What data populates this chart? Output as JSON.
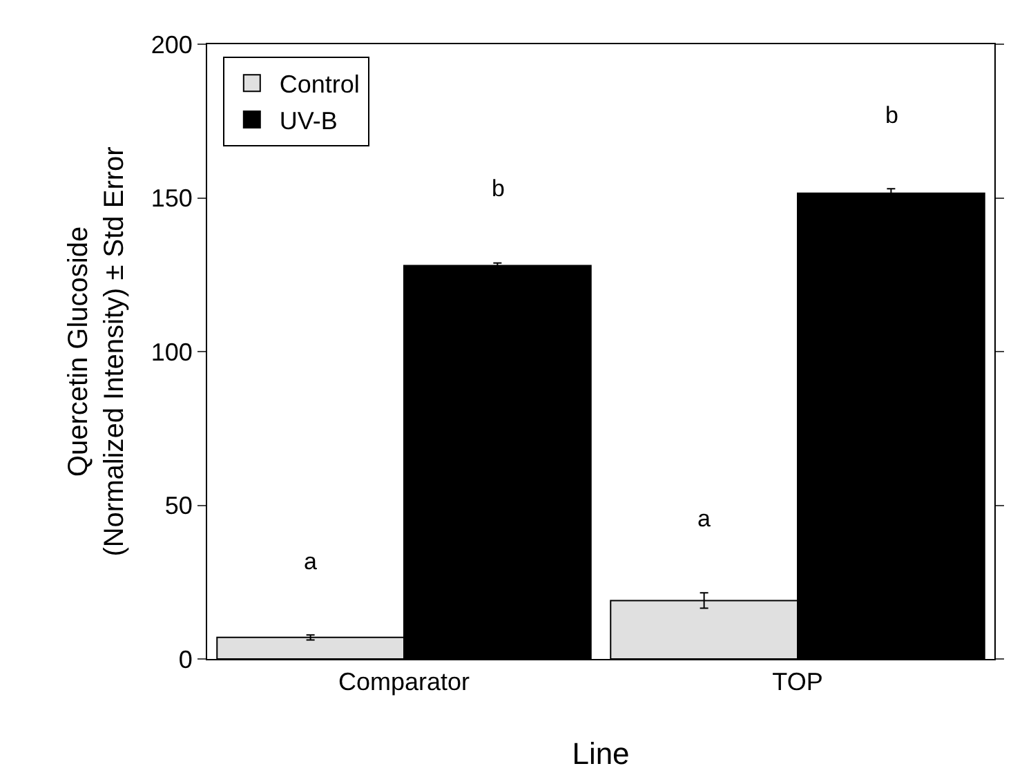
{
  "chart_data": {
    "type": "bar",
    "xlabel": "Line",
    "ylabel": "Quercetin Glucoside\n(Normalized Intensity) ± Std Error",
    "categories": [
      "Comparator",
      "TOP"
    ],
    "series": [
      {
        "name": "Control",
        "color": "#e0e0e0",
        "values": [
          7,
          19
        ],
        "errors": [
          0.8,
          2.5
        ]
      },
      {
        "name": "UV-B",
        "color": "#000000",
        "values": [
          128,
          151.5
        ],
        "errors": [
          0.8,
          1.5
        ]
      }
    ],
    "ylim": [
      0,
      200
    ],
    "yticks": [
      0,
      50,
      100,
      150,
      200
    ],
    "grid": false,
    "legend": "top left",
    "annotations": [
      "a",
      "b",
      "a",
      "b"
    ]
  }
}
